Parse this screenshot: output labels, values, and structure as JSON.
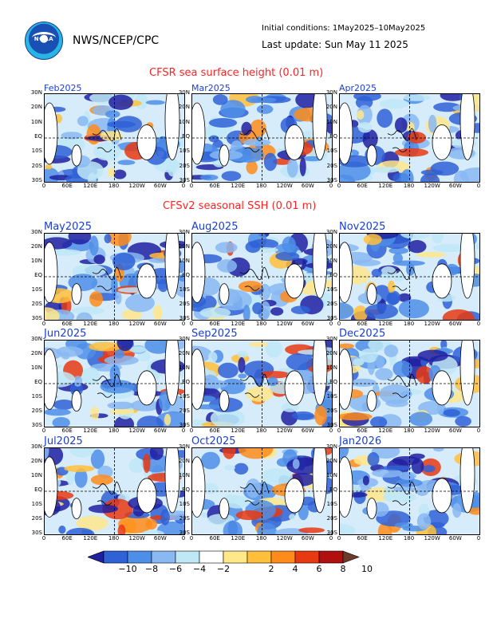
{
  "header": {
    "logo_text": "NOAA",
    "agency": "NWS/NCEP/CPC",
    "initial_conditions": "Initial conditions: 1May2025–10May2025",
    "last_update": "Last update: Sun May 11 2025"
  },
  "sections": {
    "observed_title": "CFSR sea surface height (0.01 m)",
    "forecast_title": "CFSv2 seasonal SSH (0.01 m)"
  },
  "panels": {
    "observed": [
      "Feb2025",
      "Mar2025",
      "Apr2025"
    ],
    "forecast": [
      "May2025",
      "Aug2025",
      "Nov2025",
      "Jun2025",
      "Sep2025",
      "Dec2025",
      "Jul2025",
      "Oct2025",
      "Jan2026"
    ]
  },
  "axes": {
    "lat_labels": [
      "30N",
      "20N",
      "10N",
      "EQ",
      "10S",
      "20S",
      "30S"
    ],
    "lon_labels": [
      "0",
      "60E",
      "120E",
      "180",
      "120W",
      "60W",
      "0"
    ]
  },
  "colorbar": {
    "labels": [
      "−10",
      "−8",
      "−6",
      "−4",
      "−2",
      "2",
      "4",
      "6",
      "8",
      "10"
    ],
    "colors": [
      "#2020a0",
      "#2f62d6",
      "#4d8ee8",
      "#8ab8f2",
      "#bfe8f6",
      "#ffffff",
      "#ffe88a",
      "#ffbf3a",
      "#ff8c1a",
      "#e83a12",
      "#b01010",
      "#6b3a2a"
    ]
  },
  "map_colors": {
    "border": "#000000",
    "coast": "#000000",
    "grid": "#000000",
    "title_blue": "#1a3fd0",
    "section_red": "#ff2222"
  }
}
